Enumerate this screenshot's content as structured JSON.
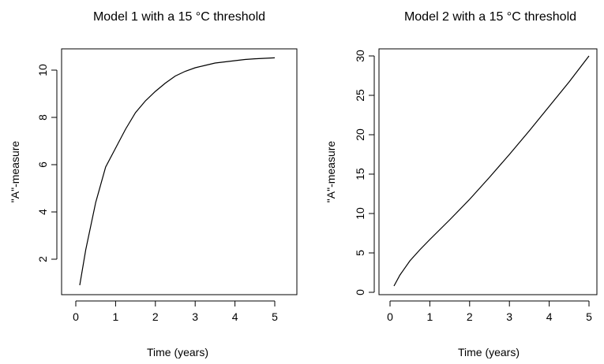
{
  "chart_data": [
    {
      "type": "line",
      "title": "Model 1 with a 15 °C threshold",
      "xlabel": "Time (years)",
      "ylabel": "\"A\"-measure",
      "xlim": [
        0,
        5
      ],
      "ylim": [
        0.5,
        11
      ],
      "xticks": [
        0,
        1,
        2,
        3,
        4,
        5
      ],
      "yticks": [
        2,
        4,
        6,
        8,
        10
      ],
      "grid": false,
      "series": [
        {
          "x": [
            0.1,
            0.25,
            0.5,
            0.75,
            1.0,
            1.25,
            1.5,
            1.75,
            2.0,
            2.25,
            2.5,
            2.75,
            3.0,
            3.25,
            3.5,
            3.75,
            4.0,
            4.25,
            4.5,
            4.75,
            5.0
          ],
          "y": [
            0.9,
            2.4,
            4.4,
            5.9,
            6.7,
            7.5,
            8.2,
            8.7,
            9.1,
            9.45,
            9.75,
            9.95,
            10.1,
            10.2,
            10.3,
            10.35,
            10.4,
            10.45,
            10.48,
            10.5,
            10.52
          ]
        }
      ]
    },
    {
      "type": "line",
      "title": "Model 2 with a 15 °C threshold",
      "xlabel": "Time (years)",
      "ylabel": "\"A\"-measure",
      "xlim": [
        0,
        5
      ],
      "ylim": [
        0,
        30
      ],
      "xticks": [
        0,
        1,
        2,
        3,
        4,
        5
      ],
      "yticks": [
        0,
        5,
        10,
        15,
        20,
        25,
        30
      ],
      "grid": false,
      "series": [
        {
          "x": [
            0.1,
            0.25,
            0.5,
            0.75,
            1.0,
            1.5,
            2.0,
            2.5,
            3.0,
            3.5,
            4.0,
            4.5,
            5.0
          ],
          "y": [
            0.8,
            2.2,
            4.0,
            5.4,
            6.7,
            9.2,
            11.8,
            14.6,
            17.5,
            20.5,
            23.6,
            26.7,
            30.0
          ]
        }
      ]
    }
  ]
}
